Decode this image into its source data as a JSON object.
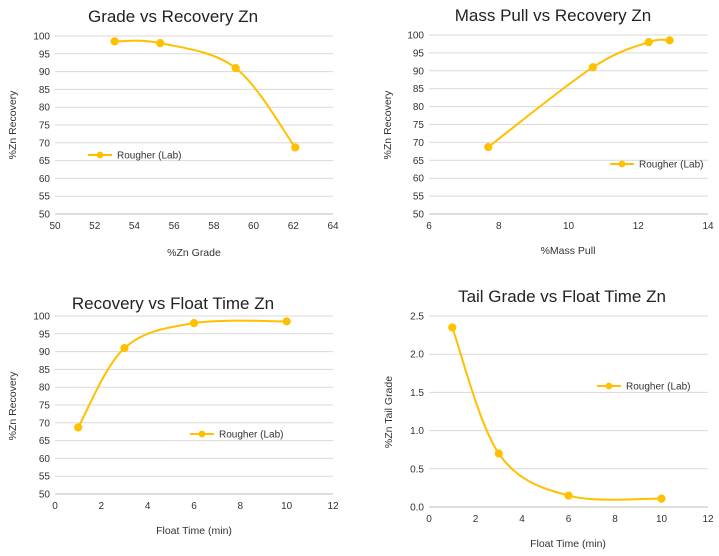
{
  "series_color": "#FFC000",
  "grid_color": "#D9D9D9",
  "chart_data": [
    {
      "id": "grade-vs-recovery",
      "type": "line",
      "smooth": true,
      "title": "Grade vs Recovery Zn",
      "xlabel": "%Zn Grade",
      "ylabel": "%Zn Recovery",
      "xlim": [
        50,
        64
      ],
      "ylim": [
        50,
        100
      ],
      "xticks": [
        50,
        52,
        54,
        56,
        58,
        60,
        62,
        64
      ],
      "yticks": [
        50,
        55,
        60,
        65,
        70,
        75,
        80,
        85,
        90,
        95,
        100
      ],
      "grid": "horizontal",
      "legend": "left",
      "series": [
        {
          "name": "Rougher (Lab)",
          "x": [
            53.0,
            55.3,
            59.1,
            62.1
          ],
          "y": [
            98.5,
            98.0,
            91.0,
            68.7
          ]
        }
      ]
    },
    {
      "id": "mass-pull-vs-recovery",
      "type": "line",
      "smooth": true,
      "title": "Mass Pull vs Recovery Zn",
      "xlabel": "%Mass Pull",
      "ylabel": "%Zn Recovery",
      "xlim": [
        6,
        14
      ],
      "ylim": [
        50,
        100
      ],
      "xticks": [
        6,
        8,
        10,
        12,
        14
      ],
      "yticks": [
        50,
        55,
        60,
        65,
        70,
        75,
        80,
        85,
        90,
        95,
        100
      ],
      "grid": "horizontal",
      "legend": "right",
      "series": [
        {
          "name": "Rougher (Lab)",
          "x": [
            7.7,
            10.7,
            12.3,
            12.9
          ],
          "y": [
            68.7,
            91.0,
            98.0,
            98.5
          ]
        }
      ]
    },
    {
      "id": "recovery-vs-float-time",
      "type": "line",
      "smooth": true,
      "title": "Recovery vs Float Time Zn",
      "xlabel": "Float Time (min)",
      "ylabel": "%Zn Recovery",
      "xlim": [
        0,
        12
      ],
      "ylim": [
        50,
        100
      ],
      "xticks": [
        0,
        2,
        4,
        6,
        8,
        10,
        12
      ],
      "yticks": [
        50,
        55,
        60,
        65,
        70,
        75,
        80,
        85,
        90,
        95,
        100
      ],
      "grid": "horizontal",
      "legend": "right",
      "series": [
        {
          "name": "Rougher (Lab)",
          "x": [
            1,
            3,
            6,
            10
          ],
          "y": [
            68.7,
            91.0,
            98.0,
            98.5
          ]
        }
      ]
    },
    {
      "id": "tail-grade-vs-float-time",
      "type": "line",
      "smooth": true,
      "title": "Tail Grade vs Float Time Zn",
      "xlabel": "Float Time (min)",
      "ylabel": "%Zn Tail Grade",
      "xlim": [
        0,
        12
      ],
      "ylim": [
        0,
        2.5
      ],
      "xticks": [
        0,
        2,
        4,
        6,
        8,
        10,
        12
      ],
      "yticks": [
        0.0,
        0.5,
        1.0,
        1.5,
        2.0,
        2.5
      ],
      "ytick_decimals": 1,
      "grid": "horizontal",
      "legend": "right",
      "series": [
        {
          "name": "Rougher (Lab)",
          "x": [
            1,
            3,
            6,
            10
          ],
          "y": [
            2.35,
            0.7,
            0.15,
            0.11
          ]
        }
      ]
    }
  ]
}
